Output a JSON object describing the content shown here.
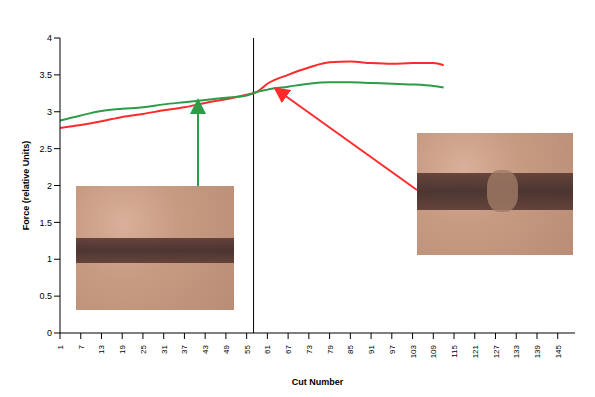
{
  "chart_data": {
    "type": "line",
    "x_label": "Cut Number",
    "y_label": "Force (relative Units)",
    "x": [
      1,
      7,
      13,
      19,
      25,
      31,
      37,
      43,
      49,
      55,
      58,
      61,
      67,
      73,
      79,
      85,
      91,
      97,
      103,
      109,
      112
    ],
    "series": [
      {
        "color": "#ff2a2a",
        "values": [
          2.78,
          2.82,
          2.87,
          2.93,
          2.97,
          3.02,
          3.06,
          3.12,
          3.17,
          3.23,
          3.27,
          3.38,
          3.5,
          3.6,
          3.67,
          3.68,
          3.66,
          3.65,
          3.66,
          3.66,
          3.63
        ]
      },
      {
        "color": "#2e9b48",
        "values": [
          2.88,
          2.95,
          3.01,
          3.04,
          3.06,
          3.1,
          3.13,
          3.16,
          3.19,
          3.22,
          3.27,
          3.3,
          3.34,
          3.38,
          3.4,
          3.4,
          3.39,
          3.38,
          3.37,
          3.35,
          3.33
        ]
      }
    ],
    "reference_x": 57,
    "xlim": [
      1,
      150
    ],
    "xticks": [
      1,
      7,
      13,
      19,
      25,
      31,
      37,
      43,
      49,
      55,
      61,
      67,
      73,
      79,
      85,
      91,
      97,
      103,
      109,
      115,
      121,
      127,
      133,
      139,
      145
    ],
    "ylim": [
      0,
      4
    ],
    "yticks": [
      0,
      0.5,
      1,
      1.5,
      2,
      2.5,
      3,
      3.5,
      4
    ],
    "grid": false
  }
}
